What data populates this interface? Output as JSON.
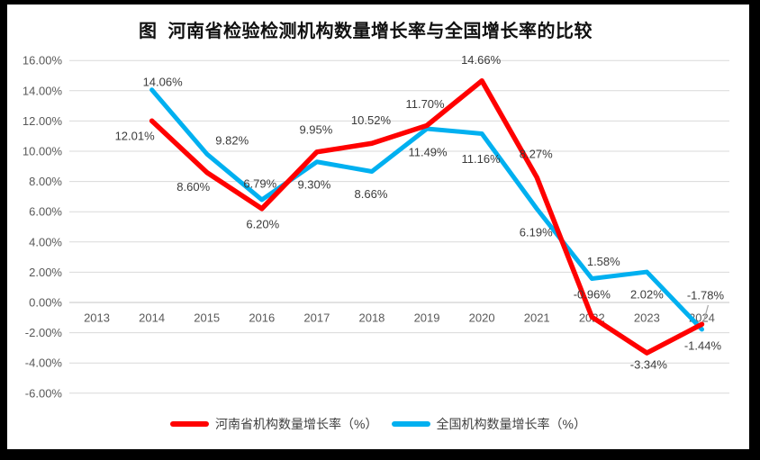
{
  "window": {
    "frame_color": "#000000",
    "canvas_color": "#ffffff"
  },
  "title": "图  河南省检验检测机构数量增长率与全国增长率的比较",
  "chart_data": {
    "type": "line",
    "title": "图  河南省检验检测机构数量增长率与全国增长率的比较",
    "categories": [
      "2013",
      "2014",
      "2015",
      "2016",
      "2017",
      "2018",
      "2019",
      "2020",
      "2021",
      "2022",
      "2023",
      "2024"
    ],
    "series": [
      {
        "name": "河南省机构数量增长率（%）",
        "color": "#FF0000",
        "values": [
          null,
          12.01,
          8.6,
          6.2,
          9.95,
          10.52,
          11.7,
          14.66,
          8.27,
          -0.96,
          -3.34,
          -1.44
        ],
        "data_labels": [
          "",
          "12.01%",
          "8.60%",
          "6.20%",
          "9.95%",
          "10.52%",
          "11.70%",
          "14.66%",
          "8.27%",
          "-0.96%",
          "-3.34%",
          "-1.44%"
        ],
        "label_offsets": [
          [
            0,
            0
          ],
          [
            -19,
            17
          ],
          [
            -15,
            16
          ],
          [
            1,
            17
          ],
          [
            -1,
            -25
          ],
          [
            -1,
            -26
          ],
          [
            -2,
            -24
          ],
          [
            -1,
            -23
          ],
          [
            -1,
            -26
          ],
          [
            0,
            -25
          ],
          [
            2,
            13
          ],
          [
            1,
            24
          ]
        ]
      },
      {
        "name": "全国机构数量增长率（%）",
        "color": "#00B0F0",
        "values": [
          null,
          14.06,
          9.82,
          6.79,
          9.3,
          8.66,
          11.49,
          11.16,
          6.19,
          1.58,
          2.02,
          -1.78
        ],
        "data_labels": [
          "",
          "14.06%",
          "9.82%",
          "6.79%",
          "9.30%",
          "8.66%",
          "11.49%",
          "11.16%",
          "6.19%",
          "1.58%",
          "2.02%",
          "-1.78%"
        ],
        "label_offsets": [
          [
            0,
            0
          ],
          [
            12,
            -9
          ],
          [
            28,
            -15
          ],
          [
            -2,
            -18
          ],
          [
            -3,
            25
          ],
          [
            -1,
            25
          ],
          [
            1,
            26
          ],
          [
            -1,
            28
          ],
          [
            -1,
            26
          ],
          [
            13,
            -19
          ],
          [
            0,
            25
          ],
          [
            4,
            -38
          ]
        ],
        "leader_line_at": 11
      }
    ],
    "ylim": [
      -6,
      16
    ],
    "ytick_step": 2,
    "yticks": [
      "16.00%",
      "14.00%",
      "12.00%",
      "10.00%",
      "8.00%",
      "6.00%",
      "4.00%",
      "2.00%",
      "0.00%",
      "-2.00%",
      "-4.00%",
      "-6.00%"
    ],
    "grid": true,
    "legend_position": "bottom",
    "colors": {
      "gridline": "#D9D9D9",
      "axis_line": "#C6C6C6",
      "tick_text": "#595959",
      "data_label_text": "#3B3B3B",
      "leader_line": "#A6A6A6"
    }
  }
}
